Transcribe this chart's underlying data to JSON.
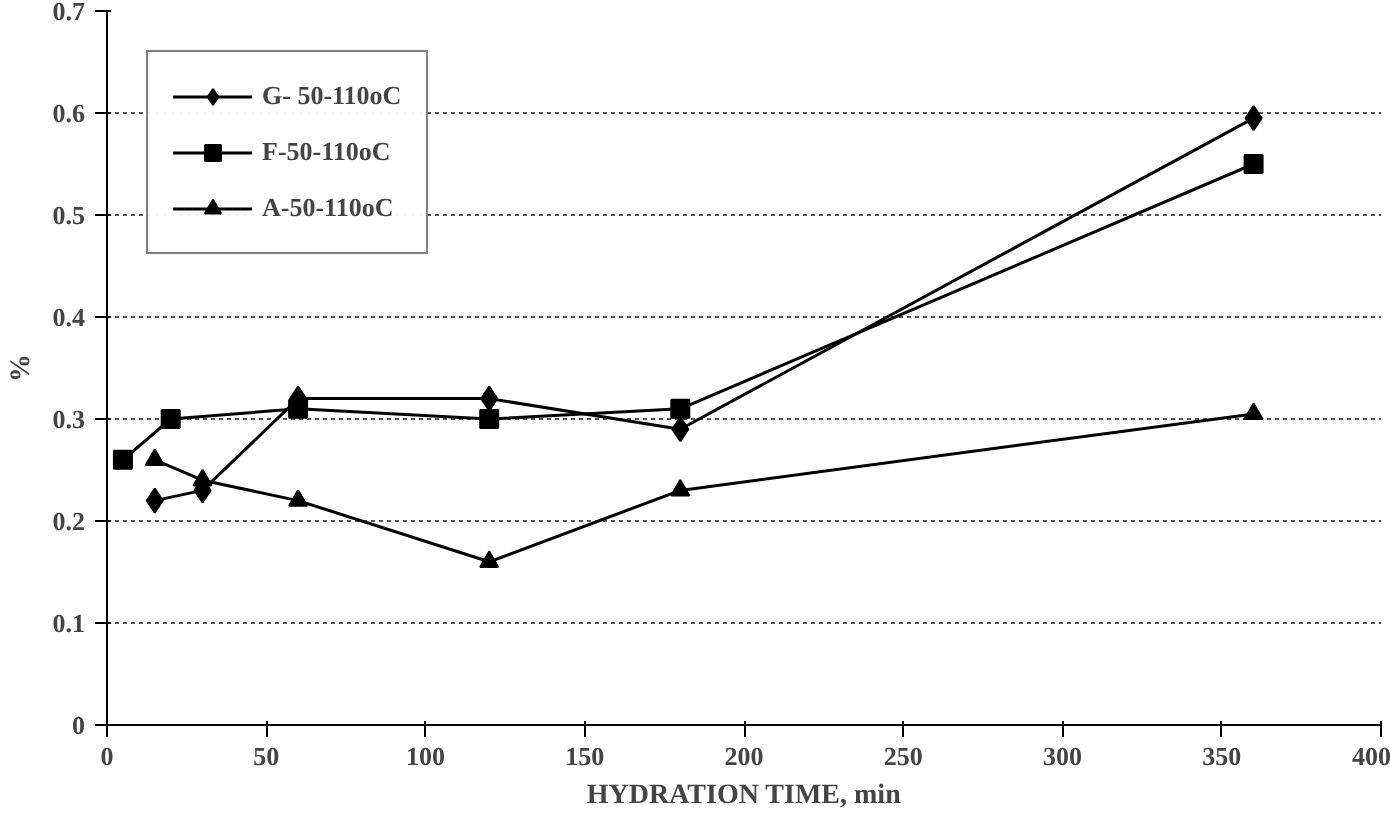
{
  "chart_data": {
    "type": "line",
    "xlabel": "HYDRATION TIME, min",
    "ylabel": "%",
    "xlim": [
      0,
      400
    ],
    "xticks": [
      0,
      50,
      100,
      150,
      200,
      250,
      300,
      350,
      400
    ],
    "ylim": [
      0,
      0.7
    ],
    "yticks": [
      0,
      0.1,
      0.2,
      0.3,
      0.4,
      0.5,
      0.6,
      0.7
    ],
    "grid": "y",
    "legend": "top left",
    "line_style": "solid",
    "series": [
      {
        "name": "G- 50-110oC",
        "color": "#000000",
        "marker": "diamond",
        "x": [
          15,
          30,
          60,
          120,
          180,
          360
        ],
        "values": [
          0.22,
          0.23,
          0.32,
          0.32,
          0.29,
          0.595
        ]
      },
      {
        "name": "F-50-110oC",
        "color": "#000000",
        "marker": "square",
        "x": [
          5,
          20,
          60,
          120,
          180,
          360
        ],
        "values": [
          0.26,
          0.3,
          0.31,
          0.3,
          0.31,
          0.55
        ]
      },
      {
        "name": "A-50-110oC",
        "color": "#000000",
        "marker": "triangle",
        "x": [
          15,
          30,
          60,
          120,
          180,
          360
        ],
        "values": [
          0.26,
          0.24,
          0.22,
          0.16,
          0.23,
          0.305
        ]
      }
    ]
  }
}
